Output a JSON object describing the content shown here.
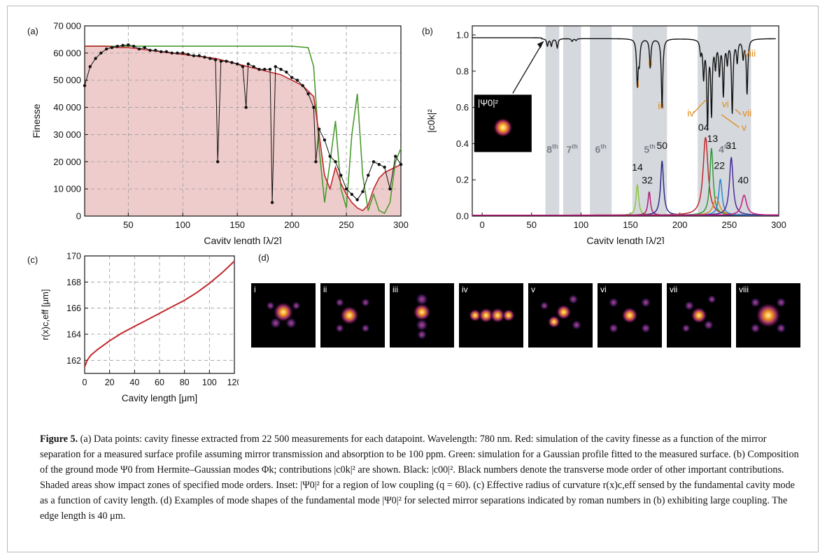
{
  "figure": {
    "panel_labels": {
      "a": "(a)",
      "b": "(b)",
      "c": "(c)",
      "d": "(d)"
    },
    "caption": {
      "title": "Figure 5.",
      "text": "(a) Data points: cavity finesse extracted from 22 500 measurements for each datapoint. Wavelength: 780 nm. Red: simulation of the cavity finesse as a function of the mirror separation for a measured surface profile assuming mirror transmission and absorption to be 100 ppm. Green: simulation for a Gaussian profile fitted to the measured surface. (b) Composition of the ground mode Ψ0 from Hermite–Gaussian modes Φk; contributions |c0k|² are shown. Black: |c00|². Black numbers denote the transverse mode order of other important contributions. Shaded areas show impact zones of specified mode orders. Inset: |Ψ0|² for a region of low coupling (q = 60). (c) Effective radius of curvature r(x)c,eff sensed by the fundamental cavity mode as a function of cavity length. (d) Examples of mode shapes of the fundamental mode |Ψ0|² for selected mirror separations indicated by roman numbers in (b) exhibiting large coupling. The edge length is 40 μm."
    },
    "panel_d": {
      "labels": [
        "i",
        "ii",
        "iii",
        "iv",
        "v",
        "vi",
        "vii",
        "viii"
      ]
    },
    "inset_label": "|Ψ0|²",
    "colors": {
      "black": "#111111",
      "red": "#c0282b",
      "green": "#4a9a2e",
      "orange": "#e08a1e",
      "shade": "#d5d8dd",
      "fill": "#efcccc"
    }
  },
  "chart_data": [
    {
      "id": "a",
      "type": "line",
      "xlabel": "Cavity length [λ/2]",
      "ylabel": "Finesse",
      "xlim": [
        10,
        300
      ],
      "ylim": [
        0,
        70000
      ],
      "xticks": [
        50,
        100,
        150,
        200,
        250,
        300
      ],
      "yticks": [
        0,
        10000,
        20000,
        30000,
        40000,
        50000,
        60000,
        70000
      ],
      "ytick_labels": [
        "0",
        "10 000",
        "20 000",
        "30 000",
        "40 000",
        "50 000",
        "60 000",
        "70 000"
      ],
      "grid": true,
      "series": [
        {
          "color": "black",
          "style": "points+line",
          "x": [
            10,
            15,
            20,
            25,
            30,
            35,
            40,
            45,
            50,
            55,
            60,
            65,
            70,
            75,
            80,
            85,
            90,
            95,
            100,
            105,
            110,
            115,
            120,
            125,
            130,
            132,
            135,
            140,
            145,
            150,
            155,
            158,
            160,
            165,
            170,
            175,
            180,
            182,
            185,
            190,
            195,
            200,
            205,
            210,
            215,
            220,
            222,
            225,
            230,
            235,
            240,
            245,
            250,
            255,
            260,
            265,
            270,
            275,
            280,
            285,
            290,
            295,
            300
          ],
          "y": [
            48000,
            55000,
            58000,
            60000,
            61500,
            62000,
            62500,
            62800,
            63000,
            62500,
            61500,
            62000,
            61000,
            61000,
            60500,
            60500,
            60000,
            60000,
            60000,
            59500,
            59000,
            59000,
            58500,
            58000,
            57500,
            20000,
            57000,
            57000,
            56500,
            56000,
            55000,
            40000,
            56000,
            55000,
            54000,
            54000,
            54000,
            5000,
            55000,
            54000,
            53000,
            51000,
            50000,
            48000,
            45000,
            40000,
            20000,
            32000,
            28000,
            22000,
            20000,
            15000,
            10000,
            8000,
            6000,
            9000,
            15000,
            20000,
            19000,
            18000,
            10000,
            22000,
            19000
          ]
        },
        {
          "color": "red",
          "style": "line",
          "fill": true,
          "x": [
            10,
            20,
            30,
            40,
            50,
            60,
            70,
            80,
            90,
            100,
            110,
            120,
            130,
            140,
            150,
            160,
            170,
            180,
            190,
            200,
            210,
            220,
            225,
            230,
            235,
            240,
            245,
            250,
            255,
            260,
            265,
            270,
            275,
            280,
            285,
            290,
            295,
            300
          ],
          "y": [
            62500,
            62500,
            62500,
            62000,
            62000,
            61500,
            61000,
            60500,
            60000,
            59500,
            59000,
            58500,
            58000,
            57000,
            56000,
            55000,
            54000,
            53000,
            52000,
            50000,
            48000,
            44000,
            30000,
            15000,
            10000,
            18000,
            12000,
            8000,
            5000,
            3000,
            2000,
            4000,
            10000,
            14000,
            16000,
            17000,
            18000,
            19000
          ]
        },
        {
          "color": "green",
          "style": "line",
          "x": [
            10,
            50,
            100,
            150,
            200,
            215,
            220,
            225,
            230,
            235,
            240,
            245,
            250,
            255,
            260,
            265,
            270,
            275,
            280,
            285,
            290,
            295,
            300
          ],
          "y": [
            62500,
            62500,
            62500,
            62500,
            62500,
            62000,
            55000,
            25000,
            5000,
            20000,
            35000,
            10000,
            3000,
            30000,
            45000,
            15000,
            2000,
            8000,
            2000,
            1000,
            5000,
            20000,
            25000
          ]
        }
      ]
    },
    {
      "id": "b",
      "type": "line",
      "xlabel": "Cavity length [λ/2]",
      "ylabel": "|c0k|²",
      "xlim": [
        -10,
        300
      ],
      "ylim": [
        0,
        1.05
      ],
      "xticks": [
        0,
        50,
        100,
        150,
        200,
        250,
        300
      ],
      "yticks": [
        0.0,
        0.2,
        0.4,
        0.6,
        0.8,
        1.0
      ],
      "ytick_labels": [
        "0.0",
        "0.2",
        "0.4",
        "0.6",
        "0.8",
        "1.0"
      ],
      "grid": false,
      "shaded_regions": [
        {
          "x": [
            64,
            78
          ],
          "label": "8th"
        },
        {
          "x": [
            82,
            100
          ],
          "label": "7th"
        },
        {
          "x": [
            109,
            131
          ],
          "label": "6th"
        },
        {
          "x": [
            152,
            187
          ],
          "label": "5th"
        },
        {
          "x": [
            218,
            272
          ],
          "label": "4th"
        }
      ],
      "mode_numbers": [
        {
          "text": "14",
          "x": 157,
          "y": 0.25
        },
        {
          "text": "32",
          "x": 167,
          "y": 0.18
        },
        {
          "text": "50",
          "x": 182,
          "y": 0.37
        },
        {
          "text": "04",
          "x": 224,
          "y": 0.47
        },
        {
          "text": "13",
          "x": 233,
          "y": 0.41
        },
        {
          "text": "22",
          "x": 240,
          "y": 0.26
        },
        {
          "text": "31",
          "x": 252,
          "y": 0.37
        },
        {
          "text": "40",
          "x": 264,
          "y": 0.18
        }
      ],
      "roman_labels": [
        {
          "text": "i",
          "x": 158,
          "y": 0.71
        },
        {
          "text": "ii",
          "x": 170,
          "y": 0.83
        },
        {
          "text": "iii",
          "x": 181,
          "y": 0.59
        },
        {
          "text": "iv",
          "x": 211,
          "y": 0.55
        },
        {
          "text": "v",
          "x": 265,
          "y": 0.47
        },
        {
          "text": "vi",
          "x": 246,
          "y": 0.6
        },
        {
          "text": "vii",
          "x": 268,
          "y": 0.55
        },
        {
          "text": "viii",
          "x": 271,
          "y": 0.88
        }
      ],
      "peaks": [
        {
          "color": "#8cc63f",
          "x": 157,
          "h": 0.17,
          "w": 1.5
        },
        {
          "color": "#b0197a",
          "x": 169,
          "h": 0.13,
          "w": 1.5
        },
        {
          "color": "#2e2a8c",
          "x": 182,
          "h": 0.3,
          "w": 1.8
        },
        {
          "color": "#c0282b",
          "x": 226,
          "h": 0.43,
          "w": 3.0
        },
        {
          "color": "#2e9a3a",
          "x": 232,
          "h": 0.37,
          "w": 2.0
        },
        {
          "color": "#e08a1e",
          "x": 237,
          "h": 0.1,
          "w": 3.5
        },
        {
          "color": "#2a87d6",
          "x": 241,
          "h": 0.2,
          "w": 2.0
        },
        {
          "color": "#4b2c9a",
          "x": 252,
          "h": 0.32,
          "w": 2.2
        },
        {
          "color": "#c21a7e",
          "x": 265,
          "h": 0.11,
          "w": 3.0
        }
      ],
      "black_dips": [
        {
          "x": 66,
          "d": 0.04
        },
        {
          "x": 70,
          "d": 0.04
        },
        {
          "x": 76,
          "d": 0.05
        },
        {
          "x": 91,
          "d": 0.015
        },
        {
          "x": 95,
          "d": 0.01
        },
        {
          "x": 157,
          "d": 0.25
        },
        {
          "x": 159,
          "d": 0.12
        },
        {
          "x": 170,
          "d": 0.16
        },
        {
          "x": 182,
          "d": 0.38
        },
        {
          "x": 221,
          "d": 0.07
        },
        {
          "x": 224,
          "d": 0.2
        },
        {
          "x": 228,
          "d": 0.47
        },
        {
          "x": 232,
          "d": 0.4
        },
        {
          "x": 236,
          "d": 0.14
        },
        {
          "x": 240,
          "d": 0.18
        },
        {
          "x": 244,
          "d": 0.3
        },
        {
          "x": 248,
          "d": 0.12
        },
        {
          "x": 253,
          "d": 0.4
        },
        {
          "x": 258,
          "d": 0.12
        },
        {
          "x": 264,
          "d": 0.1
        },
        {
          "x": 268,
          "d": 0.3
        }
      ]
    },
    {
      "id": "c",
      "type": "line",
      "xlabel": "Cavity length [μm]",
      "ylabel": "r(x)c,eff [μm]",
      "xlim": [
        0,
        120
      ],
      "ylim": [
        161,
        170
      ],
      "xticks": [
        0,
        20,
        40,
        60,
        80,
        100,
        120
      ],
      "yticks": [
        162,
        164,
        166,
        168,
        170
      ],
      "grid": true,
      "series": [
        {
          "color": "red",
          "x": [
            0,
            2,
            5,
            10,
            20,
            30,
            40,
            50,
            60,
            70,
            80,
            90,
            100,
            110,
            120
          ],
          "y": [
            161.5,
            162.0,
            162.4,
            162.8,
            163.5,
            164.1,
            164.6,
            165.1,
            165.6,
            166.1,
            166.6,
            167.2,
            167.9,
            168.7,
            169.6
          ]
        }
      ]
    }
  ]
}
